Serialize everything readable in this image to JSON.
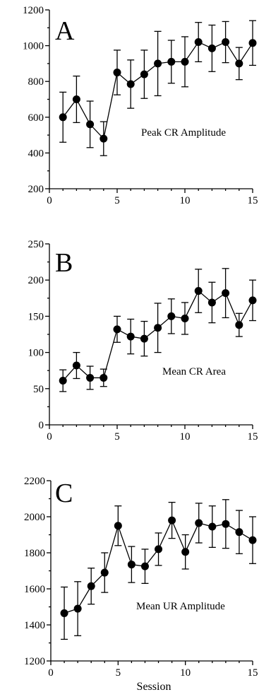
{
  "chart_data": [
    {
      "type": "line",
      "panel_label": "A",
      "annotation": "Peak CR Amplitude",
      "x": [
        1,
        2,
        3,
        4,
        5,
        6,
        7,
        8,
        9,
        10,
        11,
        12,
        13,
        14,
        15
      ],
      "y": [
        600,
        700,
        560,
        480,
        850,
        785,
        840,
        900,
        910,
        910,
        1020,
        985,
        1020,
        900,
        1015
      ],
      "error": [
        140,
        130,
        130,
        95,
        125,
        135,
        135,
        180,
        120,
        140,
        110,
        130,
        115,
        90,
        125
      ],
      "xlim": [
        0,
        15
      ],
      "ylim": [
        200,
        1200
      ],
      "xticks": [
        0,
        5,
        10,
        15
      ],
      "yticks": [
        200,
        400,
        600,
        800,
        1000,
        1200
      ],
      "xlabel": "",
      "ylabel": ""
    },
    {
      "type": "line",
      "panel_label": "B",
      "annotation": "Mean CR Area",
      "x": [
        1,
        2,
        3,
        4,
        5,
        6,
        7,
        8,
        9,
        10,
        11,
        12,
        13,
        14,
        15
      ],
      "y": [
        61,
        82,
        65,
        65,
        132,
        122,
        119,
        134,
        150,
        147,
        185,
        169,
        182,
        138,
        172
      ],
      "error": [
        15,
        18,
        16,
        12,
        18,
        24,
        24,
        34,
        24,
        22,
        30,
        28,
        34,
        16,
        28
      ],
      "xlim": [
        0,
        15
      ],
      "ylim": [
        0,
        250
      ],
      "xticks": [
        0,
        5,
        10,
        15
      ],
      "yticks": [
        0,
        50,
        100,
        150,
        200,
        250
      ],
      "xlabel": "",
      "ylabel": ""
    },
    {
      "type": "line",
      "panel_label": "C",
      "annotation": "Mean UR Amplitude",
      "x": [
        1,
        2,
        3,
        4,
        5,
        6,
        7,
        8,
        9,
        10,
        11,
        12,
        13,
        14,
        15
      ],
      "y": [
        1465,
        1490,
        1615,
        1690,
        1950,
        1735,
        1725,
        1820,
        1980,
        1805,
        1965,
        1945,
        1960,
        1915,
        1870
      ],
      "error": [
        145,
        150,
        100,
        110,
        110,
        100,
        95,
        90,
        100,
        95,
        110,
        115,
        135,
        120,
        130
      ],
      "xlim": [
        0,
        15
      ],
      "ylim": [
        1200,
        2200
      ],
      "xticks": [
        0,
        5,
        10,
        15
      ],
      "yticks": [
        1200,
        1400,
        1600,
        1800,
        2000,
        2200
      ],
      "xlabel": "Session",
      "ylabel": ""
    }
  ]
}
